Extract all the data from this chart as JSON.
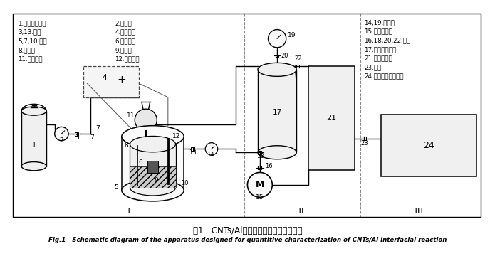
{
  "title_cn": "图1   CNTs/Al界面反应定量检测装置示意",
  "title_en": "Fig.1   Schematic diagram of the apparatus designed for quantitive characterization of CNTs/Al interfacial reaction",
  "legend_left_col1": [
    "1.辅助气体气瓶",
    "3,13.气阀",
    "5,7,10.容器",
    "8.铂电极",
    "11.分液部件"
  ],
  "legend_left_col2": [
    "2.流量计",
    "4.直流电源",
    "6.待测样品",
    "9.电解液",
    "12.石墨电极"
  ],
  "legend_right": [
    "14,19.流量计",
    "15.真空机械泵",
    "16,18,20,22.气阀",
    "17.标定气体气瓶",
    "21.气体收集室",
    "23.气阀",
    "24.气相色谱仪及附件"
  ],
  "sections": [
    "I",
    "II",
    "III"
  ],
  "bg_color": "#ffffff",
  "line_color": "#000000"
}
